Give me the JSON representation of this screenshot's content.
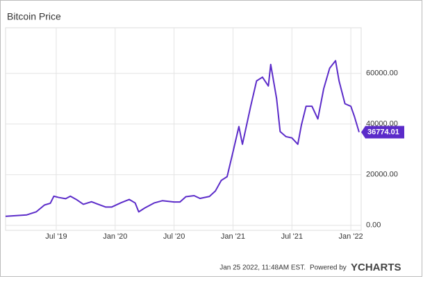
{
  "chart_data": {
    "type": "line",
    "title": "Bitcoin Price",
    "x": [
      2019.07,
      2019.15,
      2019.25,
      2019.33,
      2019.4,
      2019.45,
      2019.48,
      2019.52,
      2019.58,
      2019.62,
      2019.67,
      2019.73,
      2019.8,
      2019.85,
      2019.92,
      2019.97,
      2020.05,
      2020.12,
      2020.17,
      2020.2,
      2020.25,
      2020.33,
      2020.4,
      2020.5,
      2020.55,
      2020.6,
      2020.67,
      2020.72,
      2020.8,
      2020.85,
      2020.9,
      2020.95,
      2021.0,
      2021.05,
      2021.08,
      2021.15,
      2021.2,
      2021.25,
      2021.3,
      2021.32,
      2021.37,
      2021.4,
      2021.45,
      2021.5,
      2021.55,
      2021.58,
      2021.62,
      2021.67,
      2021.72,
      2021.77,
      2021.82,
      2021.87,
      2021.9,
      2021.95,
      2022.0,
      2022.03,
      2022.07
    ],
    "series": [
      {
        "name": "Bitcoin Price",
        "color": "#5b2bc9",
        "values": [
          3550,
          3800,
          4100,
          5300,
          8000,
          8700,
          11500,
          11000,
          10500,
          11500,
          10200,
          8300,
          9300,
          8400,
          7200,
          7200,
          8900,
          10200,
          8800,
          5300,
          6800,
          8800,
          9700,
          9200,
          9200,
          11300,
          11700,
          10600,
          11400,
          13500,
          17700,
          19200,
          29000,
          39000,
          32000,
          47000,
          57000,
          58500,
          55000,
          63500,
          50000,
          37000,
          35000,
          34500,
          32000,
          39500,
          47000,
          47000,
          42000,
          54000,
          62000,
          65000,
          57000,
          48000,
          47000,
          43000,
          36774.01
        ],
        "value_labels": [
          null,
          null,
          null,
          null,
          null,
          null,
          null,
          null,
          null,
          null,
          null,
          null,
          null,
          null,
          null,
          null,
          null,
          null,
          null,
          null,
          null,
          null,
          null,
          null,
          null,
          null,
          null,
          null,
          null,
          null,
          null,
          null,
          null,
          null,
          null,
          null,
          null,
          null,
          null,
          null,
          null,
          null,
          null,
          null,
          null,
          null,
          null,
          null,
          null,
          null,
          null,
          null,
          null,
          null,
          null,
          null,
          "36774.01"
        ]
      }
    ],
    "xlim": [
      2019.07,
      2022.07
    ],
    "xticks": [
      {
        "value": 2019.5,
        "label": "Jul '19"
      },
      {
        "value": 2020.0,
        "label": "Jan '20"
      },
      {
        "value": 2020.5,
        "label": "Jul '20"
      },
      {
        "value": 2021.0,
        "label": "Jan '21"
      },
      {
        "value": 2021.5,
        "label": "Jul '21"
      },
      {
        "value": 2022.0,
        "label": "Jan '22"
      }
    ],
    "ylim": [
      -2000,
      78000
    ],
    "yticks": [
      {
        "value": 0,
        "label": "0.00"
      },
      {
        "value": 20000,
        "label": "20000.00"
      },
      {
        "value": 40000,
        "label": "40000.00"
      },
      {
        "value": 60000,
        "label": "60000.00"
      }
    ],
    "grid": true
  },
  "footer": {
    "timestamp": "Jan 25 2022, 11:48AM EST.",
    "powered_by": "Powered by",
    "brand": "YCHARTS"
  }
}
